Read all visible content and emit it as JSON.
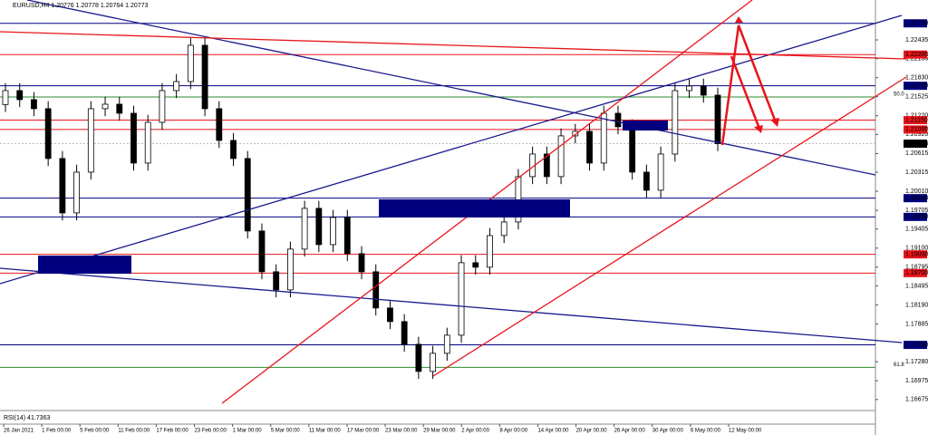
{
  "chart_data": {
    "type": "candlestick",
    "title": "EURUSD,H4  1.20776 1.20778 1.20764 1.20773",
    "indicator": "RSI(14) 41.7363",
    "up_color": "#000000",
    "down_color": "#000000",
    "open": [
      1.214,
      1.21623,
      1.21478,
      1.21333,
      1.20535,
      1.19664,
      1.20317,
      1.21333,
      1.21405,
      1.2126,
      1.20462,
      1.21115,
      1.21623,
      1.21768,
      1.22349,
      1.21333,
      1.20825,
      1.20535,
      1.19374,
      1.18721,
      1.18431,
      1.19084,
      1.19737,
      1.19156,
      1.19591,
      1.19011,
      1.18721,
      1.18141,
      1.17923,
      1.1756,
      1.17125,
      1.17415,
      1.17705,
      1.18866,
      1.18794,
      1.19301,
      1.19519,
      1.20245,
      1.20607,
      1.20245,
      1.20898,
      1.2097,
      1.20462,
      1.2126,
      1.21043,
      1.20317,
      1.20027,
      1.20607,
      1.21623,
      1.21696,
      1.2155
    ],
    "high": [
      1.21743,
      1.21743,
      1.21598,
      1.21453,
      1.20655,
      1.20437,
      1.21453,
      1.21525,
      1.21525,
      1.2138,
      1.21235,
      1.21743,
      1.21888,
      1.22469,
      1.22469,
      1.21453,
      1.20945,
      1.20655,
      1.19494,
      1.18841,
      1.19204,
      1.19857,
      1.19857,
      1.19711,
      1.19711,
      1.19131,
      1.18841,
      1.18261,
      1.18043,
      1.1768,
      1.17535,
      1.17825,
      1.18986,
      1.18986,
      1.19421,
      1.19639,
      1.20365,
      1.20727,
      1.20727,
      1.21018,
      1.2109,
      1.2109,
      1.2138,
      1.2138,
      1.21163,
      1.20437,
      1.20727,
      1.21743,
      1.21816,
      1.21816,
      1.2167
    ],
    "low": [
      1.2128,
      1.21358,
      1.21213,
      1.20415,
      1.19544,
      1.19544,
      1.20197,
      1.21213,
      1.2114,
      1.20342,
      1.20342,
      1.20995,
      1.21503,
      1.21648,
      1.21213,
      1.20705,
      1.20415,
      1.19254,
      1.18601,
      1.18311,
      1.18311,
      1.18964,
      1.19036,
      1.19036,
      1.18891,
      1.18601,
      1.18021,
      1.17803,
      1.1744,
      1.17005,
      1.17005,
      1.17295,
      1.17585,
      1.18674,
      1.18674,
      1.19181,
      1.19399,
      1.20125,
      1.20125,
      1.20125,
      1.20778,
      1.20342,
      1.20342,
      1.20923,
      1.20197,
      1.19907,
      1.19907,
      1.20487,
      1.21503,
      1.2143,
      1.20653
    ],
    "close": [
      1.21623,
      1.21478,
      1.21333,
      1.20535,
      1.19664,
      1.20317,
      1.21333,
      1.21405,
      1.2126,
      1.20462,
      1.21115,
      1.21623,
      1.21768,
      1.22349,
      1.21333,
      1.20825,
      1.20535,
      1.19374,
      1.18721,
      1.18431,
      1.19084,
      1.19737,
      1.19156,
      1.19591,
      1.19011,
      1.18721,
      1.18141,
      1.17923,
      1.1756,
      1.17125,
      1.17415,
      1.17705,
      1.18866,
      1.18794,
      1.19301,
      1.19519,
      1.20245,
      1.20607,
      1.20245,
      1.20898,
      1.2097,
      1.20462,
      1.2126,
      1.21043,
      1.20317,
      1.20027,
      1.20607,
      1.21623,
      1.21696,
      1.2155,
      1.20773
    ],
    "date_labels": [
      "26 Jan 2021",
      "1 Feb 00:00",
      "5 Feb 00:00",
      "11 Feb 00:00",
      "17 Feb 00:00",
      "23 Feb 00:00",
      "1 Mar 00:00",
      "5 Mar 00:00",
      "11 Mar 00:00",
      "17 Mar 00:00",
      "23 Mar 00:00",
      "29 Mar 00:00",
      "2 Apr 00:00",
      "8 Apr 00:00",
      "14 Apr 00:00",
      "20 Apr 00:00",
      "26 Apr 00:00",
      "30 Apr 00:00",
      "6 May 00:00",
      "12 May 00:00"
    ],
    "ylim": [
      1.16513,
      1.23074
    ],
    "yticks": [
      {
        "value": 1.22435,
        "label": "1.22435"
      },
      {
        "value": 1.22135,
        "label": "1.22135"
      },
      {
        "value": 1.2183,
        "label": "1.21830"
      },
      {
        "value": 1.21525,
        "label": "1.21525"
      },
      {
        "value": 1.2122,
        "label": "1.21220"
      },
      {
        "value": 1.2092,
        "label": "1.20920"
      },
      {
        "value": 1.20615,
        "label": "1.20615"
      },
      {
        "value": 1.20315,
        "label": "1.20315"
      },
      {
        "value": 1.2001,
        "label": "1.20010"
      },
      {
        "value": 1.19705,
        "label": "1.19705"
      },
      {
        "value": 1.19405,
        "label": "1.19405"
      },
      {
        "value": 1.191,
        "label": "1.19100"
      },
      {
        "value": 1.18795,
        "label": "1.18795"
      },
      {
        "value": 1.18495,
        "label": "1.18495"
      },
      {
        "value": 1.1819,
        "label": "1.18190"
      },
      {
        "value": 1.17885,
        "label": "1.17885"
      },
      {
        "value": 1.1728,
        "label": "1.17280"
      },
      {
        "value": 1.16975,
        "label": "1.16975"
      },
      {
        "value": 1.16675,
        "label": "1.16675"
      }
    ],
    "levels": [
      {
        "value": 1.227,
        "label": "1.22700",
        "color": "#00007f"
      },
      {
        "value": 1.222,
        "label": "1.22200",
        "color": "#e8141a"
      },
      {
        "value": 1.217,
        "label": "1.21700",
        "color": "#00007f"
      },
      {
        "value": 1.2152,
        "label": "50.0",
        "color": "#2e8b2e"
      },
      {
        "value": 1.2115,
        "label": "1.21150",
        "color": "#e8141a"
      },
      {
        "value": 1.21,
        "label": "1.21000",
        "color": "#e8141a"
      },
      {
        "value": 1.199,
        "label": "1.19900",
        "color": "#00007f"
      },
      {
        "value": 1.196,
        "label": "1.19600",
        "color": "#00007f"
      },
      {
        "value": 1.19,
        "label": "1.19000",
        "color": "#e8141a"
      },
      {
        "value": 1.187,
        "label": "1.18700",
        "color": "#e8141a"
      },
      {
        "value": 1.1755,
        "label": "1.17550",
        "color": "#00007f"
      },
      {
        "value": 1.1719,
        "label": "61.8",
        "color": "#2e8b2e"
      }
    ],
    "current": {
      "value": 1.20773,
      "label": "1.20773"
    }
  }
}
